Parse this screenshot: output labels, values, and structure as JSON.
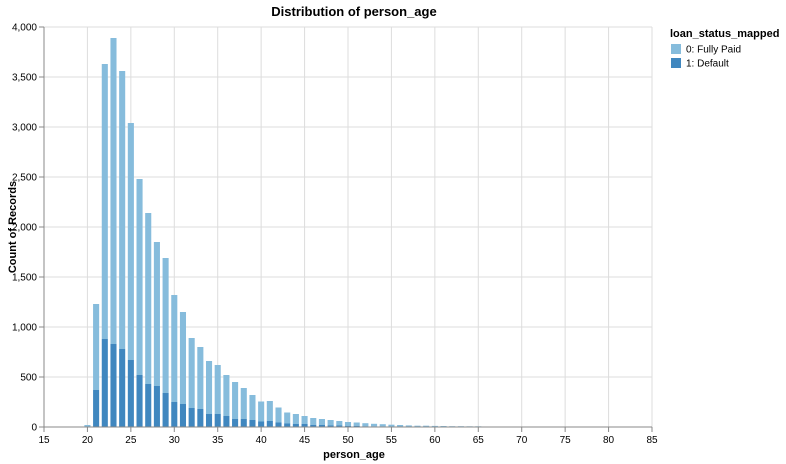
{
  "chart_data": {
    "type": "bar",
    "stacked": true,
    "title": "Distribution of person_age",
    "xlabel": "person_age",
    "ylabel": "Count of Records",
    "xlim": [
      15,
      85
    ],
    "ylim": [
      0,
      4000
    ],
    "x_ticks": [
      15,
      20,
      25,
      30,
      35,
      40,
      45,
      50,
      55,
      60,
      65,
      70,
      75,
      80,
      85
    ],
    "y_ticks": [
      0,
      500,
      1000,
      1500,
      2000,
      2500,
      3000,
      3500,
      4000
    ],
    "y_tick_labels": [
      "0",
      "500",
      "1,000",
      "1,500",
      "2,000",
      "2,500",
      "3,000",
      "3,500",
      "4,000"
    ],
    "grid": true,
    "legend": {
      "title": "loan_status_mapped",
      "position": "top-right",
      "entries": [
        "0: Fully Paid",
        "1: Default"
      ]
    },
    "x": [
      20,
      21,
      22,
      23,
      24,
      25,
      26,
      27,
      28,
      29,
      30,
      31,
      32,
      33,
      34,
      35,
      36,
      37,
      38,
      39,
      40,
      41,
      42,
      43,
      44,
      45,
      46,
      47,
      48,
      49,
      50,
      51,
      52,
      53,
      54,
      55,
      56,
      57,
      58,
      59,
      60,
      61,
      62,
      63,
      64,
      65,
      66,
      67,
      69,
      70,
      73
    ],
    "series": [
      {
        "name": "0: Fully Paid",
        "color": "#86bcdc",
        "values": [
          15,
          860,
          2750,
          3060,
          2780,
          2370,
          1960,
          1710,
          1440,
          1350,
          1070,
          920,
          700,
          620,
          530,
          490,
          410,
          370,
          310,
          250,
          200,
          200,
          150,
          110,
          100,
          80,
          70,
          60,
          55,
          45,
          40,
          35,
          30,
          25,
          22,
          18,
          15,
          12,
          10,
          10,
          8,
          8,
          6,
          6,
          5,
          5,
          4,
          4,
          3,
          3,
          3
        ]
      },
      {
        "name": "1: Default",
        "color": "#4087bf",
        "values": [
          5,
          370,
          880,
          830,
          780,
          670,
          520,
          430,
          410,
          340,
          250,
          230,
          190,
          180,
          130,
          130,
          110,
          80,
          80,
          70,
          55,
          60,
          45,
          35,
          30,
          30,
          20,
          20,
          15,
          15,
          10,
          10,
          8,
          7,
          6,
          5,
          5,
          4,
          3,
          3,
          3,
          2,
          2,
          2,
          2,
          2,
          1,
          1,
          1,
          1,
          1
        ]
      }
    ]
  }
}
